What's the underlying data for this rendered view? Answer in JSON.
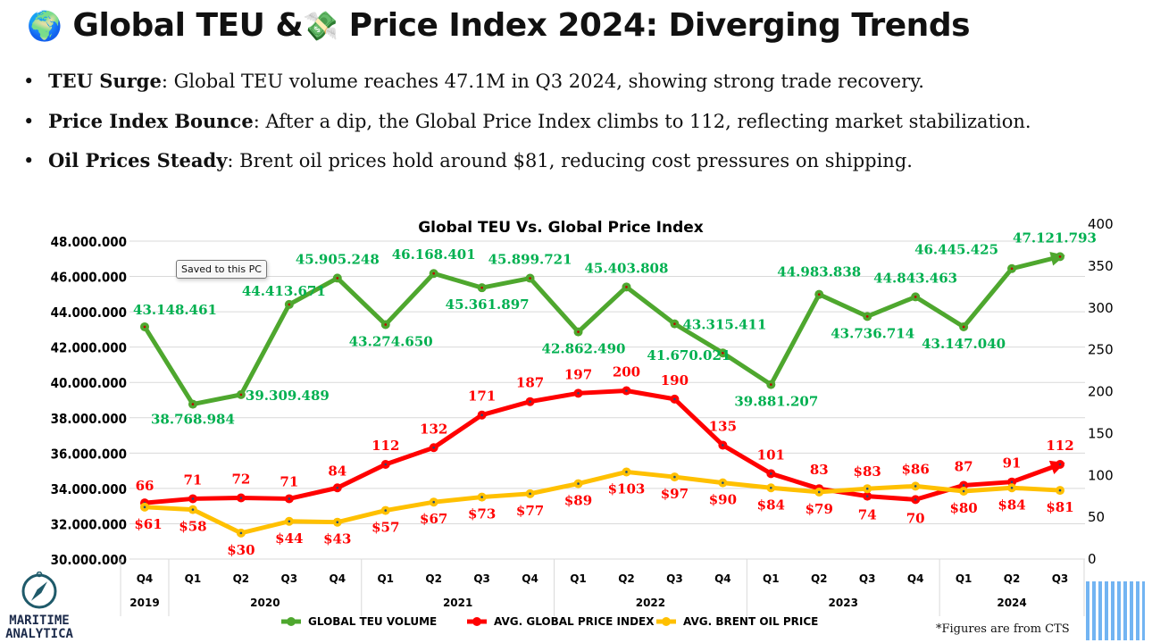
{
  "header": {
    "globe_icon": "🌍",
    "title_part1": "Global TEU &",
    "money_icon": "💸",
    "title_part2": "Price Index 2024: Diverging Trends"
  },
  "bullets": [
    {
      "bold": "TEU Surge",
      "text": ": Global TEU volume reaches 47.1M in Q3 2024, showing strong trade recovery."
    },
    {
      "bold": "Price Index Bounce",
      "text": ": After a dip, the Global Price Index climbs to 112, reflecting market stabilization."
    },
    {
      "bold": "Oil Prices Steady",
      "text": ": Brent oil prices hold around $81, reducing cost pressures on shipping."
    }
  ],
  "tooltip": "Saved to this PC",
  "footnote": "*Figures are from CTS",
  "logo": {
    "line1": "MARITIME",
    "line2": "ANALYTICA"
  },
  "chart_data": {
    "type": "line",
    "title": "Global TEU Vs. Global Price Index",
    "categories": [
      "Q4",
      "Q1",
      "Q2",
      "Q3",
      "Q4",
      "Q1",
      "Q2",
      "Q3",
      "Q4",
      "Q1",
      "Q2",
      "Q3",
      "Q4",
      "Q1",
      "Q2",
      "Q3",
      "Q4",
      "Q1",
      "Q2",
      "Q3"
    ],
    "years": [
      {
        "label": "2019",
        "span": 1
      },
      {
        "label": "2020",
        "span": 4
      },
      {
        "label": "2021",
        "span": 4
      },
      {
        "label": "2022",
        "span": 4
      },
      {
        "label": "2023",
        "span": 4
      },
      {
        "label": "2024",
        "span": 3
      }
    ],
    "left_axis": {
      "min": 30000000,
      "max": 48000000,
      "step": 2000000,
      "ticks": [
        "30.000.000",
        "32.000.000",
        "34.000.000",
        "36.000.000",
        "38.000.000",
        "40.000.000",
        "42.000.000",
        "44.000.000",
        "46.000.000",
        "48.000.000"
      ]
    },
    "right_axis": {
      "min": 0,
      "max": 400,
      "step": 50,
      "ticks": [
        "0",
        "50",
        "100",
        "150",
        "200",
        "250",
        "300",
        "350",
        "400"
      ]
    },
    "series": [
      {
        "name": "GLOBAL TEU VOLUME",
        "axis": "left",
        "color": "#4ea72e",
        "label_color": "#00b050",
        "values": [
          43148461,
          38768984,
          39309489,
          44413671,
          45905248,
          43274650,
          46168401,
          45361897,
          45899721,
          42862490,
          45403808,
          43315411,
          41670021,
          39881207,
          44983838,
          43736714,
          44843463,
          43147040,
          46445425,
          47121793
        ],
        "labels": [
          "43.148.461",
          "38.768.984",
          "39.309.489",
          "44.413.671",
          "45.905.248",
          "43.274.650",
          "46.168.401",
          "45.361.897",
          "45.899.721",
          "42.862.490",
          "45.403.808",
          "43.315.411",
          "41.670.021",
          "39.881.207",
          "44.983.838",
          "43.736.714",
          "44.843.463",
          "43.147.040",
          "46.445.425",
          "47.121.793"
        ]
      },
      {
        "name": "AVG. GLOBAL PRICE INDEX",
        "axis": "right",
        "color": "#ff0000",
        "label_color": "#ff0000",
        "values": [
          66,
          71,
          72,
          71,
          84,
          112,
          132,
          171,
          187,
          197,
          200,
          190,
          135,
          101,
          83,
          74,
          70,
          87,
          91,
          112
        ],
        "labels": [
          "66",
          "71",
          "72",
          "71",
          "84",
          "112",
          "132",
          "171",
          "187",
          "197",
          "200",
          "190",
          "135",
          "101",
          "83",
          "74",
          "70",
          "87",
          "91",
          "112"
        ]
      },
      {
        "name": "AVG. BRENT OIL PRICE",
        "axis": "right",
        "color": "#ffc000",
        "label_color": "#ff0000",
        "values": [
          61,
          58,
          30,
          44,
          43,
          57,
          67,
          73,
          77,
          89,
          103,
          97,
          90,
          84,
          79,
          83,
          86,
          80,
          84,
          81
        ],
        "labels": [
          "$61",
          "$58",
          "$30",
          "$44",
          "$43",
          "$57",
          "$67",
          "$73",
          "$77",
          "$89",
          "$103",
          "$97",
          "$90",
          "$84",
          "$79",
          "$83",
          "$86",
          "$80",
          "$84",
          "$81"
        ]
      }
    ],
    "legend": "bottom",
    "grid": true
  }
}
